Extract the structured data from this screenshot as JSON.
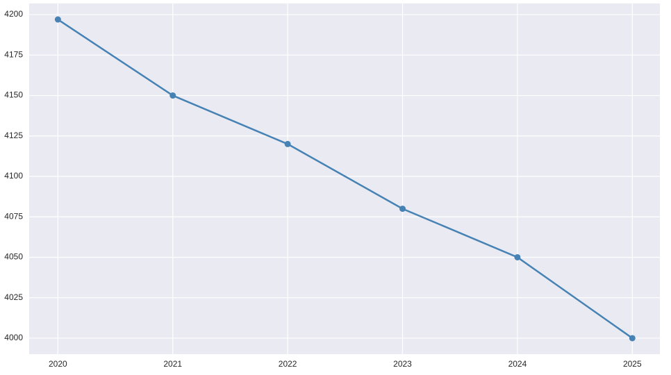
{
  "chart_data": {
    "type": "line",
    "x": [
      2020,
      2021,
      2022,
      2023,
      2024,
      2025
    ],
    "series": [
      {
        "color": "#4682b4",
        "values": [
          4197,
          4150,
          4120,
          4080,
          4050,
          4000
        ]
      }
    ],
    "xlim": [
      2019.75,
      2025.24
    ],
    "xticks": [
      2020,
      2021,
      2022,
      2023,
      2024,
      2025
    ],
    "ylim": [
      3990.1,
      4206.9
    ],
    "yticks": [
      4000,
      4025,
      4050,
      4075,
      4100,
      4125,
      4150,
      4175,
      4200
    ],
    "grid": true
  }
}
